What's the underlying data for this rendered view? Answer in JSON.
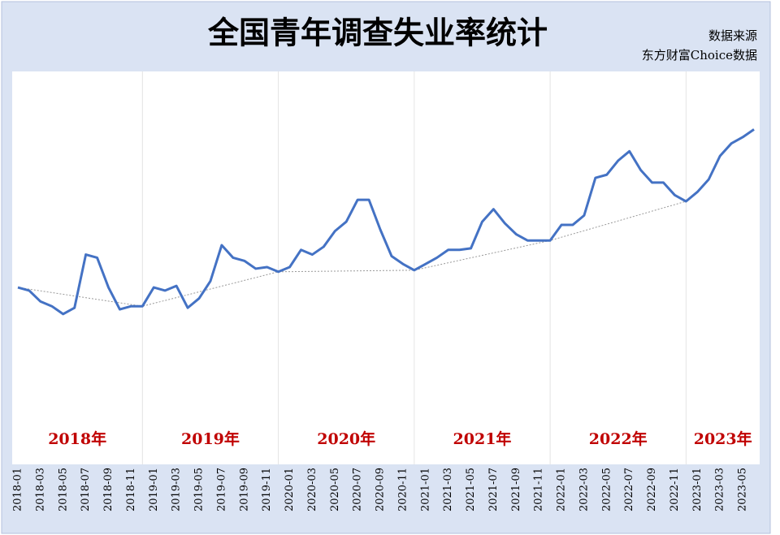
{
  "chart_data": {
    "type": "line",
    "title": "全国青年调查失业率统计",
    "source_label": "数据来源",
    "source": "东方财富Choice数据",
    "categories": [
      "2018-01",
      null,
      "2018-03",
      null,
      "2018-05",
      null,
      "2018-07",
      null,
      "2018-09",
      null,
      "2018-11",
      null,
      "2019-01",
      null,
      "2019-03",
      null,
      "2019-05",
      null,
      "2019-07",
      null,
      "2019-09",
      null,
      "2019-11",
      null,
      "2020-01",
      null,
      "2020-03",
      null,
      "2020-05",
      null,
      "2020-07",
      null,
      "2020-09",
      null,
      "2020-11",
      null,
      "2021-01",
      null,
      "2021-03",
      null,
      "2021-05",
      null,
      "2021-07",
      null,
      "2021-09",
      null,
      "2021-11",
      null,
      "2022-01",
      null,
      "2022-03",
      null,
      "2022-05",
      null,
      "2022-07",
      null,
      "2022-09",
      null,
      "2022-11",
      null,
      "2023-01",
      null,
      "2023-03",
      null,
      "2023-05",
      null
    ],
    "values": [
      11.2,
      11.0,
      10.3,
      10.0,
      9.5,
      9.9,
      13.3,
      13.1,
      11.2,
      9.8,
      10.0,
      10.0,
      11.2,
      11.0,
      11.3,
      9.9,
      10.5,
      11.6,
      13.9,
      13.1,
      12.9,
      12.4,
      12.5,
      12.2,
      12.5,
      13.6,
      13.3,
      13.8,
      14.8,
      15.4,
      16.8,
      16.8,
      14.9,
      13.2,
      12.7,
      12.3,
      12.7,
      13.1,
      13.6,
      13.6,
      13.7,
      15.4,
      16.2,
      15.3,
      14.6,
      14.2,
      14.2,
      14.2,
      15.2,
      15.2,
      15.8,
      18.2,
      18.4,
      19.3,
      19.9,
      18.7,
      17.9,
      17.9,
      17.1,
      16.7,
      17.3,
      18.1,
      19.6,
      20.4,
      20.8,
      21.3
    ],
    "color": "#4472c4",
    "ylim": [
      0,
      25
    ],
    "year_labels": [
      "2018年",
      "2019年",
      "2020年",
      "2021年",
      "2022年",
      "2023年"
    ]
  }
}
